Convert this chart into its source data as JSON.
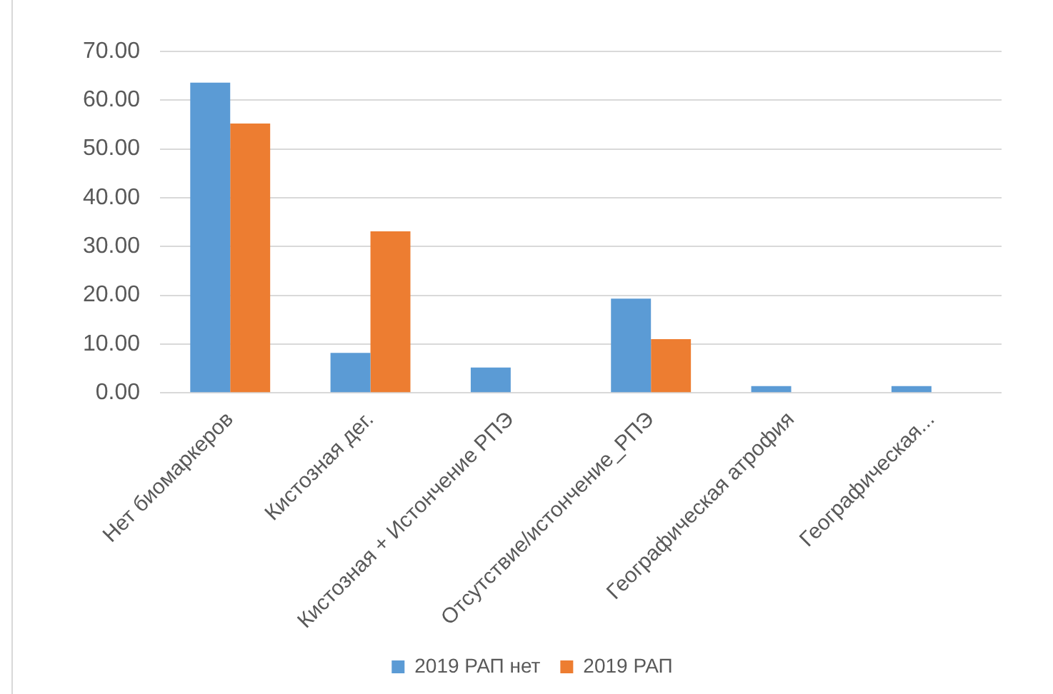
{
  "chart_data": {
    "type": "bar",
    "categories": [
      "Нет биомаркеров",
      "Кистозная дег.",
      "Кистозная + Истончение РПЭ",
      "Отсутствие/истончение_РПЭ",
      "Географическая атрофия",
      "Географическая..."
    ],
    "series": [
      {
        "name": "2019 РАП нет",
        "color": "#5b9bd5",
        "values": [
          63.6,
          8.2,
          5.2,
          19.3,
          1.4,
          1.4
        ]
      },
      {
        "name": "2019 РАП",
        "color": "#ed7d31",
        "values": [
          55.2,
          33.1,
          0,
          11,
          0,
          0
        ]
      }
    ],
    "ylim": [
      0,
      70
    ],
    "yticks": [
      {
        "value": 0,
        "label": "0.00"
      },
      {
        "value": 10,
        "label": "10.00"
      },
      {
        "value": 20,
        "label": "20.00"
      },
      {
        "value": 30,
        "label": "30.00"
      },
      {
        "value": 40,
        "label": "40.00"
      },
      {
        "value": 50,
        "label": "50.00"
      },
      {
        "value": 60,
        "label": "60.00"
      },
      {
        "value": 70,
        "label": "70.00"
      }
    ],
    "grid": "y",
    "legend": "bottom"
  }
}
